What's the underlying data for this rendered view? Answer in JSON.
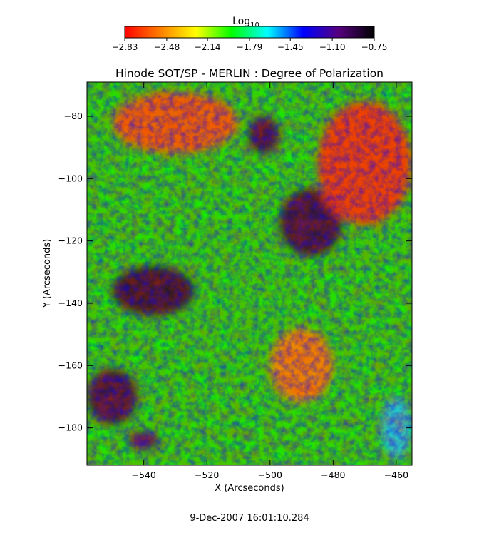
{
  "chart_data": {
    "type": "heatmap",
    "title": "Hinode SOT/SP - MERLIN : Degree of Polarization",
    "xlabel": "X (Arcseconds)",
    "ylabel": "Y (Arcseconds)",
    "xlim": [
      -558,
      -455
    ],
    "ylim": [
      -192,
      -69
    ],
    "x_ticks": [
      -540,
      -520,
      -500,
      -480,
      -460
    ],
    "x_tick_labels": [
      "−540",
      "−520",
      "−500",
      "−480",
      "−460"
    ],
    "y_ticks": [
      -80,
      -100,
      -120,
      -140,
      -160,
      -180
    ],
    "y_tick_labels": [
      "−80",
      "−100",
      "−120",
      "−140",
      "−160",
      "−180"
    ],
    "colorbar": {
      "title_base": "Log",
      "title_sub": "10",
      "min": -2.83,
      "max": -0.75,
      "ticks": [
        -2.83,
        -2.48,
        -2.14,
        -1.79,
        -1.45,
        -1.1,
        -0.75
      ],
      "tick_labels": [
        "−2.83",
        "−2.48",
        "−2.14",
        "−1.79",
        "−1.45",
        "−1.10",
        "−0.75"
      ],
      "colormap": [
        "#ff0000",
        "#ff7f00",
        "#ffff00",
        "#00ff00",
        "#00ffff",
        "#0000ff",
        "#55007f",
        "#000000"
      ]
    },
    "features": [
      {
        "x": -537,
        "y": -136,
        "rx": 13,
        "ry": 8,
        "value": -0.85
      },
      {
        "x": -550,
        "y": -170,
        "rx": 8,
        "ry": 9,
        "value": -0.9
      },
      {
        "x": -487,
        "y": -114,
        "rx": 10,
        "ry": 11,
        "value": -0.88
      },
      {
        "x": -502,
        "y": -86,
        "rx": 5,
        "ry": 6,
        "value": -0.9
      },
      {
        "x": -540,
        "y": -184,
        "rx": 5,
        "ry": 3,
        "value": -1.0
      },
      {
        "x": -460,
        "y": -180,
        "rx": 5,
        "ry": 10,
        "value": -1.6
      },
      {
        "x": -490,
        "y": -160,
        "rx": 10,
        "ry": 12,
        "value": -2.5
      },
      {
        "x": -470,
        "y": -95,
        "rx": 15,
        "ry": 20,
        "value": -2.7
      },
      {
        "x": -530,
        "y": -82,
        "rx": 20,
        "ry": 10,
        "value": -2.6
      }
    ],
    "footer": "9-Dec-2007 16:01:10.284"
  }
}
